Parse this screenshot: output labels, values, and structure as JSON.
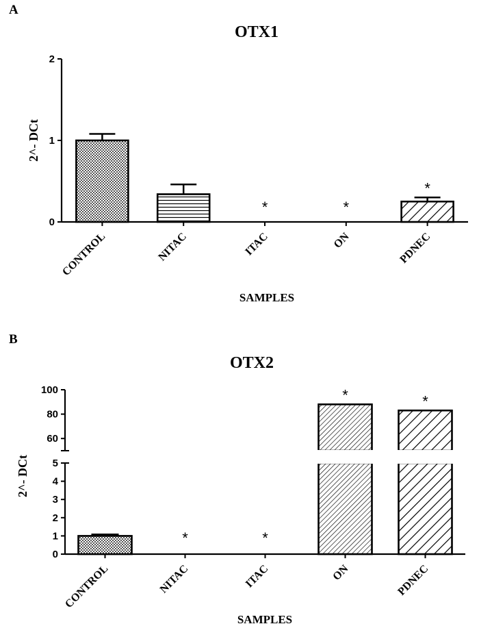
{
  "panels": [
    {
      "letter": "A",
      "title": "OTX1",
      "ylabel": "2^- DCt",
      "xlabel": "SAMPLES"
    },
    {
      "letter": "B",
      "title": "OTX2",
      "ylabel": "2^- DCt",
      "xlabel": "SAMPLES"
    }
  ],
  "chart_data": [
    {
      "type": "bar",
      "title": "OTX1",
      "xlabel": "SAMPLES",
      "ylabel": "2^- DCt",
      "categories": [
        "CONTROL",
        "NITAC",
        "ITAC",
        "ON",
        "PDNEC"
      ],
      "values": [
        1.0,
        0.34,
        0,
        0,
        0.25
      ],
      "errors": [
        0.08,
        0.12,
        0,
        0,
        0.05
      ],
      "significance": [
        "",
        "",
        "*",
        "*",
        "*"
      ],
      "patterns": [
        "checker",
        "horizontal",
        "none",
        "none",
        "diagonal-wide"
      ],
      "ylim": [
        0,
        2
      ],
      "yticks": [
        0,
        1,
        2
      ],
      "grid": false
    },
    {
      "type": "bar",
      "title": "OTX2",
      "xlabel": "SAMPLES",
      "ylabel": "2^- DCt",
      "categories": [
        "CONTROL",
        "NITAC",
        "ITAC",
        "ON",
        "PDNEC"
      ],
      "values": [
        1.0,
        0,
        0,
        88,
        83
      ],
      "errors": [
        0.08,
        0,
        0,
        0,
        0
      ],
      "significance": [
        "",
        "*",
        "*",
        "*",
        "*"
      ],
      "patterns": [
        "checker",
        "none",
        "none",
        "diagonal-fine",
        "diagonal-wide"
      ],
      "axis_break": true,
      "ylim_lower": [
        0,
        5
      ],
      "yticks_lower": [
        0,
        1,
        2,
        3,
        4,
        5
      ],
      "ylim_upper": [
        50,
        100
      ],
      "yticks_upper": [
        60,
        80,
        100
      ],
      "grid": false
    }
  ]
}
